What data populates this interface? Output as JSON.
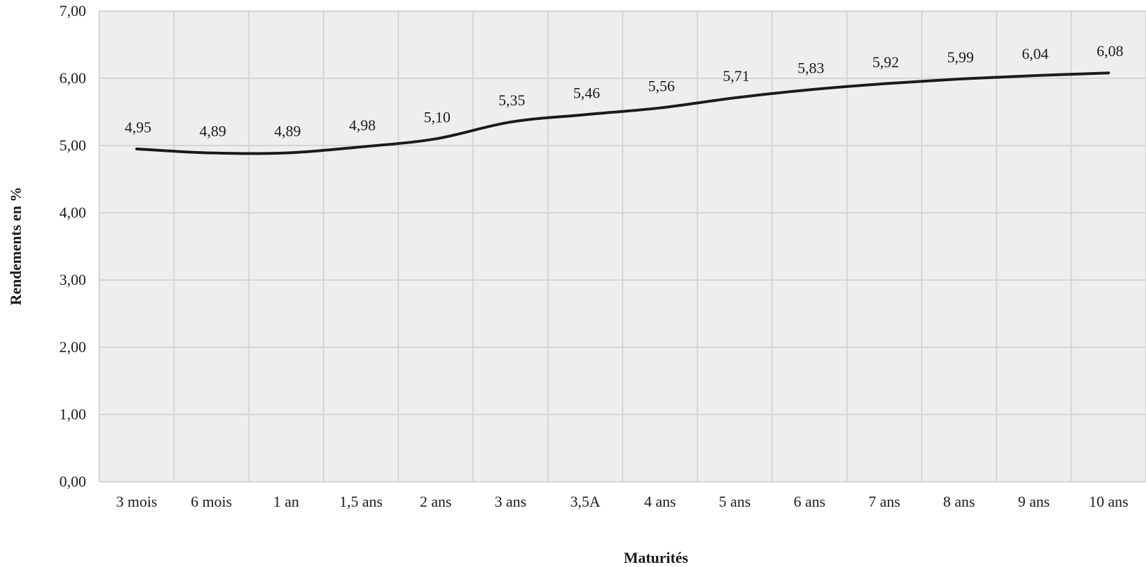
{
  "chart_data": {
    "type": "line",
    "title": "",
    "xlabel": "Maturités",
    "ylabel": "Rendements en %",
    "categories": [
      "3 mois",
      "6 mois",
      "1 an",
      "1,5 ans",
      "2 ans",
      "3 ans",
      "3,5A",
      "4 ans",
      "5 ans",
      "6 ans",
      "7 ans",
      "8 ans",
      "9 ans",
      "10 ans"
    ],
    "series": [
      {
        "values": [
          4.95,
          4.89,
          4.89,
          4.98,
          5.1,
          5.35,
          5.46,
          5.56,
          5.71,
          5.83,
          5.92,
          5.99,
          6.04,
          6.08
        ],
        "data_labels": [
          "4,95",
          "4,89",
          "4,89",
          "4,98",
          "5,10",
          "5,35",
          "5,46",
          "5,56",
          "5,71",
          "5,83",
          "5,92",
          "5,99",
          "6,04",
          "6,08"
        ]
      }
    ],
    "ylim": [
      0,
      7
    ],
    "yticks": [
      0,
      1,
      2,
      3,
      4,
      5,
      6,
      7
    ],
    "ytick_labels": [
      "0,00",
      "1,00",
      "2,00",
      "3,00",
      "4,00",
      "5,00",
      "6,00",
      "7,00"
    ],
    "grid": true,
    "smooth": true,
    "line_color": "#1a1a1a",
    "grid_color": "#d4d4d4",
    "plot_background": "#eeeeee"
  }
}
